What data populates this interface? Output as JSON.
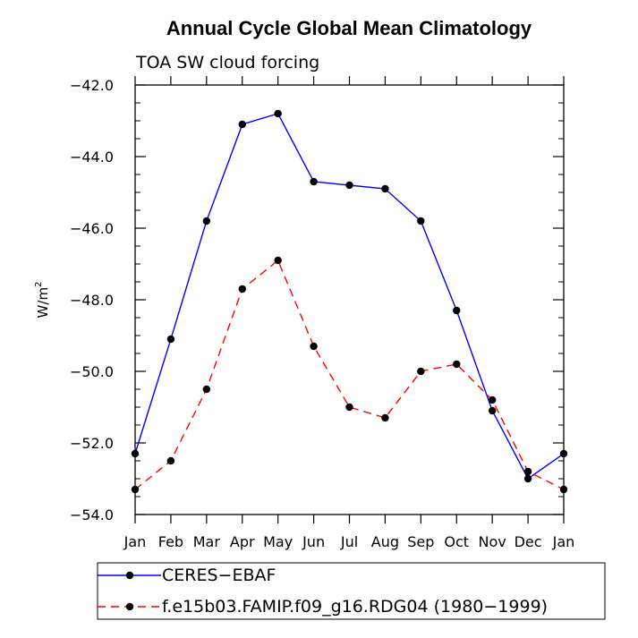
{
  "chart_data": {
    "type": "line",
    "title": "Annual Cycle Global Mean Climatology",
    "subtitle": "TOA SW cloud forcing",
    "ylabel": "W/m",
    "ylabel_superscript": "2",
    "xlabel": "",
    "categories": [
      "Jan",
      "Feb",
      "Mar",
      "Apr",
      "May",
      "Jun",
      "Jul",
      "Aug",
      "Sep",
      "Oct",
      "Nov",
      "Dec",
      "Jan"
    ],
    "ylim": [
      -54.0,
      -42.0
    ],
    "yticks": [
      "-42.0",
      "-44.0",
      "-46.0",
      "-48.0",
      "-50.0",
      "-52.0",
      "-54.0"
    ],
    "ytick_values": [
      -42,
      -44,
      -46,
      -48,
      -50,
      -52,
      -54
    ],
    "grid": false,
    "legend_placement": "bottom",
    "series": [
      {
        "name": "CERES-EBAF",
        "color": "#0000ff",
        "line_style": "solid",
        "values": [
          -52.3,
          -49.1,
          -45.8,
          -43.1,
          -42.8,
          -44.7,
          -44.8,
          -44.9,
          -45.8,
          -48.3,
          -51.1,
          -53.0,
          -52.3
        ]
      },
      {
        "name": "f.e15b03.FAMIP.f09_g16.RDG04 (1980-1999)",
        "color": "#ff0000",
        "line_style": "dashed",
        "values": [
          -53.3,
          -52.5,
          -50.5,
          -47.7,
          -46.9,
          -49.3,
          -51.0,
          -51.3,
          -50.0,
          -49.8,
          -50.8,
          -52.8,
          -53.3
        ]
      }
    ]
  }
}
